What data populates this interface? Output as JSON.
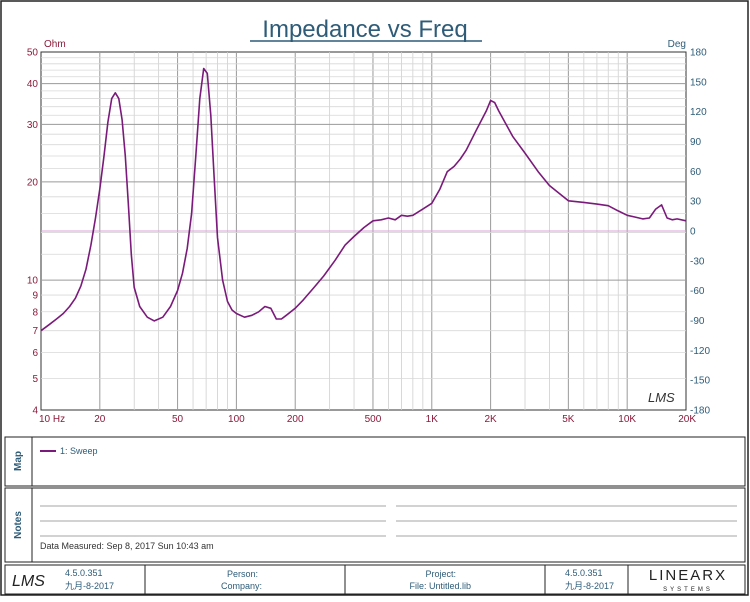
{
  "chart_data": {
    "type": "line",
    "title": "Impedance vs Freq",
    "xlabel": "",
    "ylabel": "",
    "y_unit": "Ohm",
    "y2_unit": "Deg",
    "x_scale": "log",
    "y_scale": "log",
    "xlim": [
      10,
      20000
    ],
    "ylim": [
      4,
      50
    ],
    "y2lim": [
      -180,
      180
    ],
    "grid": true,
    "legend_position": "map-panel",
    "x_ticks": [
      {
        "value": 10,
        "label": "10  Hz"
      },
      {
        "value": 20,
        "label": "20"
      },
      {
        "value": 50,
        "label": "50"
      },
      {
        "value": 100,
        "label": "100"
      },
      {
        "value": 200,
        "label": "200"
      },
      {
        "value": 500,
        "label": "500"
      },
      {
        "value": 1000,
        "label": "1K"
      },
      {
        "value": 2000,
        "label": "2K"
      },
      {
        "value": 5000,
        "label": "5K"
      },
      {
        "value": 10000,
        "label": "10K"
      },
      {
        "value": 20000,
        "label": "20K"
      }
    ],
    "y_ticks": [
      {
        "value": 4,
        "label": "4"
      },
      {
        "value": 5,
        "label": "5"
      },
      {
        "value": 6,
        "label": "6"
      },
      {
        "value": 7,
        "label": "7"
      },
      {
        "value": 8,
        "label": "8"
      },
      {
        "value": 9,
        "label": "9"
      },
      {
        "value": 10,
        "label": "10"
      },
      {
        "value": 20,
        "label": "20"
      },
      {
        "value": 30,
        "label": "30"
      },
      {
        "value": 40,
        "label": "40"
      },
      {
        "value": 50,
        "label": "50"
      }
    ],
    "y2_ticks": [
      180,
      150,
      120,
      90,
      60,
      30,
      0,
      -30,
      -60,
      -90,
      -120,
      -150,
      -180
    ],
    "reference_line": {
      "axis": "y2",
      "value": 0,
      "color": "#d9a0d9"
    },
    "series": [
      {
        "name": "1: Sweep",
        "color": "#7a1a7a",
        "x": [
          10,
          11,
          12,
          13,
          14,
          15,
          16,
          17,
          18,
          19,
          20,
          21,
          22,
          23,
          24,
          25,
          26,
          27,
          28,
          29,
          30,
          32,
          35,
          38,
          42,
          46,
          50,
          53,
          56,
          59,
          62,
          65,
          68,
          71,
          74,
          77,
          80,
          85,
          90,
          95,
          100,
          110,
          120,
          130,
          140,
          150,
          160,
          170,
          180,
          200,
          220,
          250,
          280,
          320,
          360,
          400,
          450,
          500,
          550,
          600,
          650,
          700,
          750,
          800,
          900,
          1000,
          1100,
          1200,
          1300,
          1400,
          1500,
          1600,
          1700,
          1800,
          1900,
          2000,
          2100,
          2200,
          2400,
          2600,
          3000,
          3500,
          4000,
          5000,
          6000,
          7000,
          8000,
          9000,
          10000,
          11000,
          12000,
          13000,
          14000,
          15000,
          16000,
          17000,
          18000,
          20000
        ],
        "values": [
          7.0,
          7.3,
          7.6,
          7.9,
          8.3,
          8.8,
          9.6,
          10.8,
          12.8,
          15.5,
          19.0,
          24.0,
          30.5,
          36.0,
          37.5,
          36.0,
          31.0,
          24.0,
          17.0,
          12.0,
          9.5,
          8.3,
          7.7,
          7.5,
          7.7,
          8.3,
          9.3,
          10.5,
          12.5,
          16.0,
          24.0,
          36.0,
          44.5,
          43.0,
          32.0,
          20.5,
          13.5,
          10.0,
          8.6,
          8.1,
          7.9,
          7.7,
          7.8,
          8.0,
          8.3,
          8.2,
          7.6,
          7.6,
          7.8,
          8.2,
          8.7,
          9.5,
          10.3,
          11.5,
          12.8,
          13.6,
          14.5,
          15.2,
          15.3,
          15.5,
          15.3,
          15.8,
          15.7,
          15.8,
          16.5,
          17.2,
          19.0,
          21.5,
          22.3,
          23.5,
          25.0,
          27.0,
          29.0,
          31.0,
          33.0,
          35.5,
          35.0,
          33.0,
          30.0,
          27.5,
          24.5,
          21.5,
          19.5,
          17.5,
          17.3,
          17.1,
          16.9,
          16.3,
          15.8,
          15.6,
          15.4,
          15.5,
          16.5,
          17.0,
          15.5,
          15.3,
          15.4,
          15.2
        ]
      }
    ]
  },
  "panels": {
    "map_label": "Map",
    "notes_label": "Notes",
    "data_measured": "Data Measured: Sep 8, 2017 Sun 10:43 am"
  },
  "footer": {
    "version_left": "4.5.0.351",
    "date_left": "九月-8-2017",
    "person_label": "Person:",
    "company_label": "Company:",
    "project_label": "Project:",
    "file_label": "File: Untitled.lib",
    "version_right": "4.5.0.351",
    "date_right": "九月-8-2017"
  },
  "branding": {
    "watermark": "LMS",
    "logo_text": "LMS",
    "company_logo": "LINEARX",
    "company_subtitle": "SYSTEMS"
  }
}
